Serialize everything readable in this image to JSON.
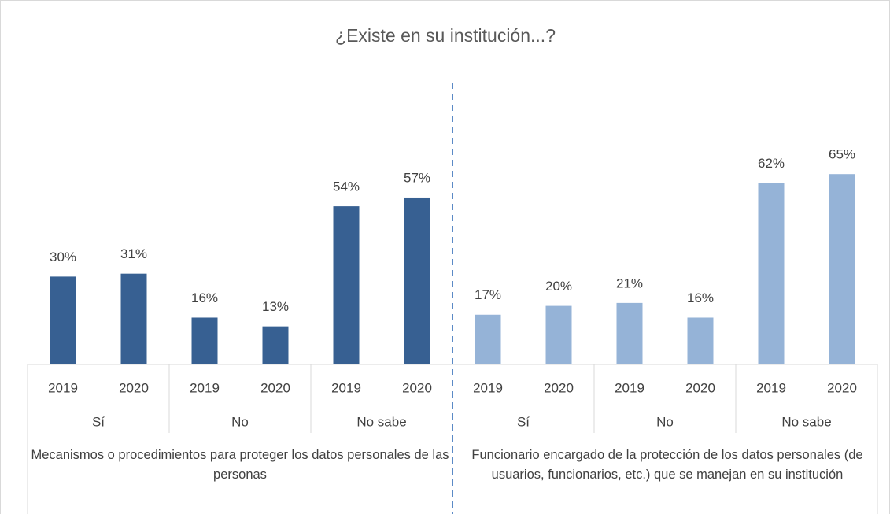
{
  "chart_data": {
    "type": "bar",
    "title": "¿Existe en su institución...?",
    "categories": [
      "2019",
      "2020",
      "2019",
      "2020",
      "2019",
      "2020",
      "2019",
      "2020",
      "2019",
      "2020",
      "2019",
      "2020"
    ],
    "subcategories": [
      "Sí",
      "No",
      "No sabe",
      "Sí",
      "No",
      "No sabe"
    ],
    "groups": [
      "Mecanismos o procedimientos para proteger los datos personales de las personas",
      "Funcionario encargado de la protección de los datos personales (de usuarios, funcionarios, etc.) que se manejan en su institución"
    ],
    "values": [
      30,
      31,
      16,
      13,
      54,
      57,
      17,
      20,
      21,
      16,
      62,
      65
    ],
    "value_labels": [
      "30%",
      "31%",
      "16%",
      "13%",
      "54%",
      "57%",
      "17%",
      "20%",
      "21%",
      "16%",
      "62%",
      "65%"
    ],
    "colors": [
      "#376092",
      "#95b3d7"
    ]
  }
}
